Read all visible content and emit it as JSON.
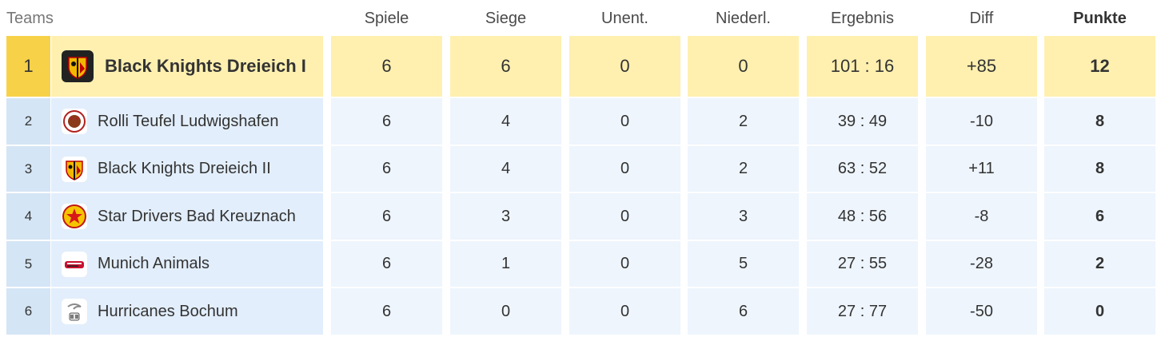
{
  "header": {
    "teams": "Teams",
    "spiele": "Spiele",
    "siege": "Siege",
    "unent": "Unent.",
    "niederl": "Niederl.",
    "ergebnis": "Ergebnis",
    "diff": "Diff",
    "punkte": "Punkte"
  },
  "rows": [
    {
      "rank": "1",
      "team": "Black Knights Dreieich I",
      "logo": "black-knights-logo",
      "spiele": "6",
      "siege": "6",
      "unent": "0",
      "niederl": "0",
      "ergebnis": "101 : 16",
      "diff": "+85",
      "punkte": "12"
    },
    {
      "rank": "2",
      "team": "Rolli Teufel Ludwigshafen",
      "logo": "rolli-teufel-logo",
      "spiele": "6",
      "siege": "4",
      "unent": "0",
      "niederl": "2",
      "ergebnis": "39 : 49",
      "diff": "-10",
      "punkte": "8"
    },
    {
      "rank": "3",
      "team": "Black Knights Dreieich II",
      "logo": "black-knights-logo",
      "spiele": "6",
      "siege": "4",
      "unent": "0",
      "niederl": "2",
      "ergebnis": "63 : 52",
      "diff": "+11",
      "punkte": "8"
    },
    {
      "rank": "4",
      "team": "Star Drivers Bad Kreuznach",
      "logo": "star-drivers-logo",
      "spiele": "6",
      "siege": "3",
      "unent": "0",
      "niederl": "3",
      "ergebnis": "48 : 56",
      "diff": "-8",
      "punkte": "6"
    },
    {
      "rank": "5",
      "team": "Munich Animals",
      "logo": "munich-animals-logo",
      "spiele": "6",
      "siege": "1",
      "unent": "0",
      "niederl": "5",
      "ergebnis": "27 : 55",
      "diff": "-28",
      "punkte": "2"
    },
    {
      "rank": "6",
      "team": "Hurricanes Bochum",
      "logo": "hurricanes-logo",
      "spiele": "6",
      "siege": "0",
      "unent": "0",
      "niederl": "6",
      "ergebnis": "27 : 77",
      "diff": "-50",
      "punkte": "0"
    }
  ],
  "colors": {
    "leader_rank": "#f7d148",
    "leader_row": "#fff0b0",
    "row_rank": "#d4e5f5",
    "row_team": "#e2eefb",
    "row_cell": "#eef5fd"
  }
}
